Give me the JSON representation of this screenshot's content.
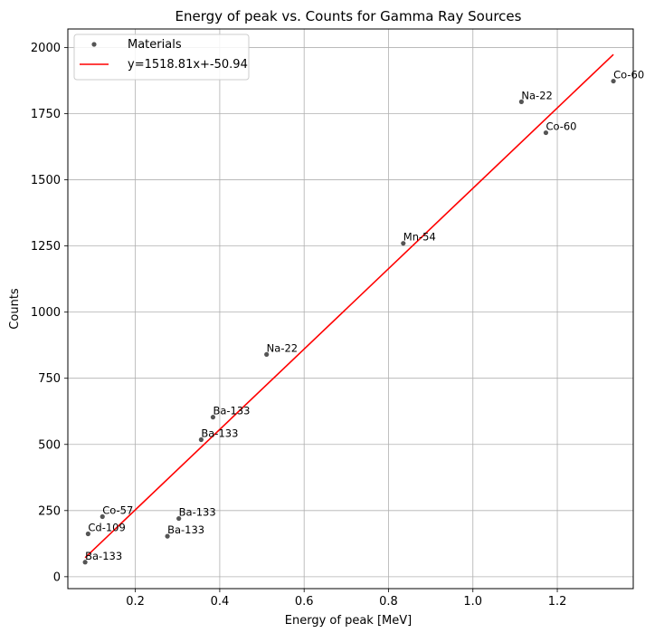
{
  "chart_data": {
    "type": "scatter",
    "title": "Energy of peak vs. Counts for Gamma Ray Sources",
    "xlabel": "Energy of peak [MeV]",
    "ylabel": "Counts",
    "xlim": [
      0.04,
      1.38
    ],
    "ylim": [
      -45,
      2070
    ],
    "xticks": [
      0.2,
      0.4,
      0.6,
      0.8,
      1.0,
      1.2
    ],
    "xtick_labels": [
      "0.2",
      "0.4",
      "0.6",
      "0.8",
      "1.0",
      "1.2"
    ],
    "yticks": [
      0,
      250,
      500,
      750,
      1000,
      1250,
      1500,
      1750,
      2000
    ],
    "ytick_labels": [
      "0",
      "250",
      "500",
      "750",
      "1000",
      "1250",
      "1500",
      "1750",
      "2000"
    ],
    "grid": true,
    "legend_position": "top-left",
    "series": [
      {
        "name": "Materials",
        "kind": "scatter",
        "color": "#555555",
        "points": [
          {
            "x": 0.081,
            "y": 55,
            "label": "Ba-133"
          },
          {
            "x": 0.088,
            "y": 162,
            "label": "Cd-109"
          },
          {
            "x": 0.122,
            "y": 227,
            "label": "Co-57"
          },
          {
            "x": 0.276,
            "y": 153,
            "label": "Ba-133"
          },
          {
            "x": 0.303,
            "y": 220,
            "label": "Ba-133"
          },
          {
            "x": 0.356,
            "y": 518,
            "label": "Ba-133"
          },
          {
            "x": 0.384,
            "y": 603,
            "label": "Ba-133"
          },
          {
            "x": 0.511,
            "y": 840,
            "label": "Na-22"
          },
          {
            "x": 0.835,
            "y": 1260,
            "label": "Mn-54"
          },
          {
            "x": 1.115,
            "y": 1795,
            "label": "Na-22"
          },
          {
            "x": 1.173,
            "y": 1678,
            "label": "Co-60"
          },
          {
            "x": 1.333,
            "y": 1873,
            "label": "Co-60"
          }
        ]
      },
      {
        "name": "y=1518.81x+-50.94",
        "kind": "line",
        "color": "#ff0000",
        "slope": 1518.81,
        "intercept": -50.94,
        "x_range": [
          0.081,
          1.333
        ]
      }
    ]
  }
}
